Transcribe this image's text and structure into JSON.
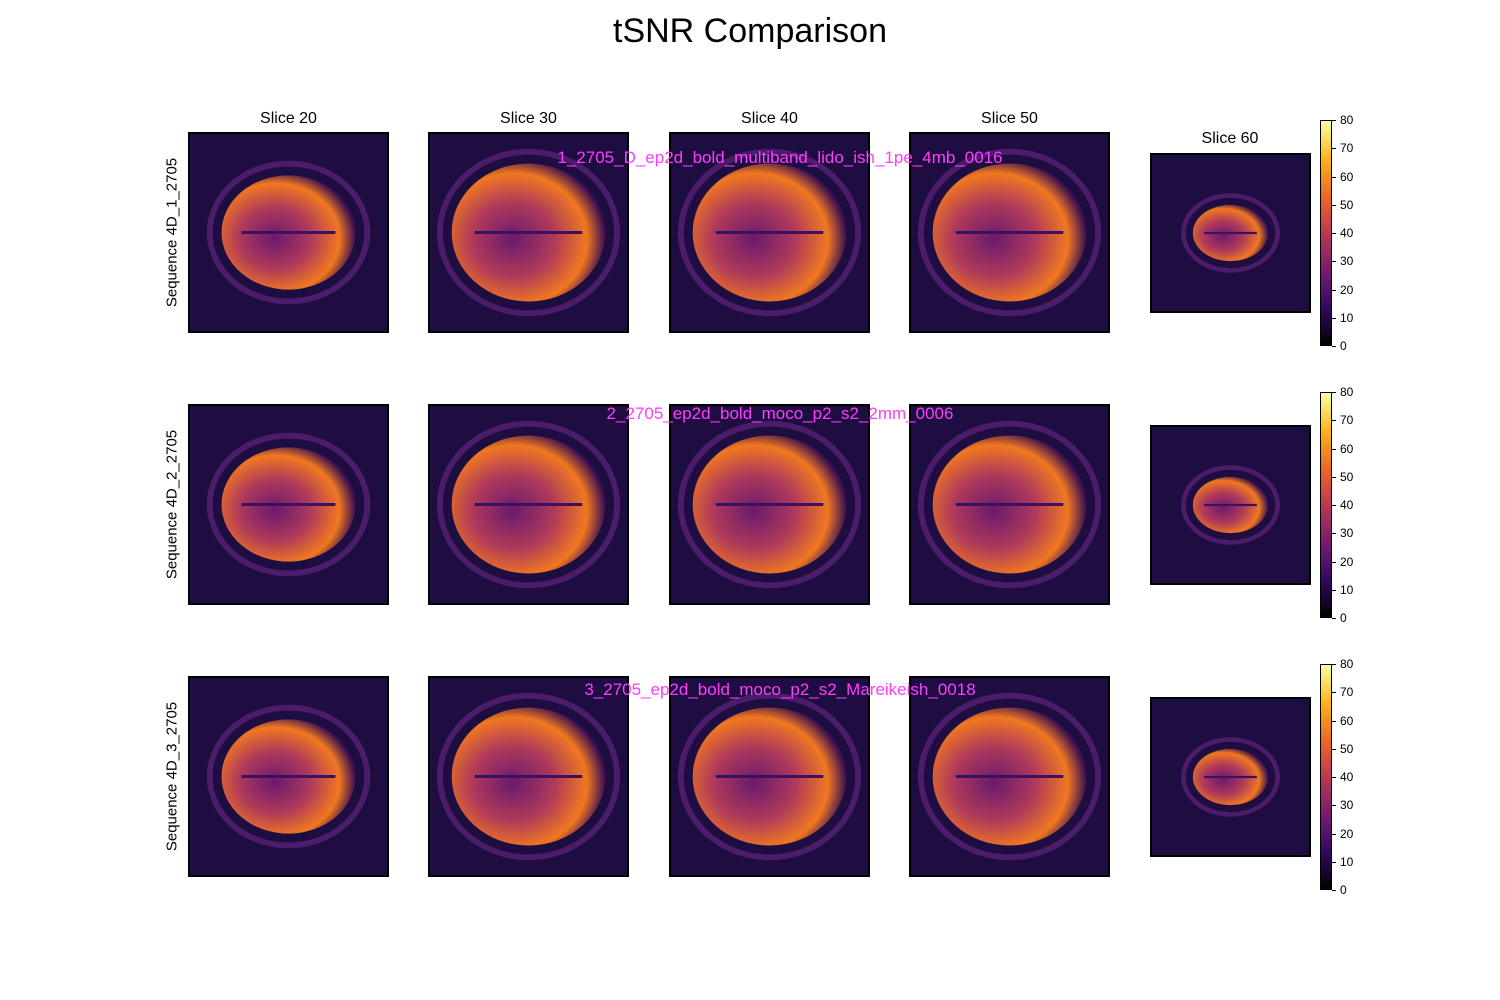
{
  "chart_data": {
    "type": "heatmap",
    "title": "tSNR Comparison",
    "columns": [
      "Slice 20",
      "Slice 30",
      "Slice 40",
      "Slice 50",
      "Slice 60"
    ],
    "rows": [
      {
        "label": "Sequence 4D_1_2705",
        "name": "1_2705_D_ep2d_bold_multiband_lido_ish_1pe_4mb_0016"
      },
      {
        "label": "Sequence 4D_2_2705",
        "name": "2_2705_ep2d_bold_moco_p2_s2_2mm_0006"
      },
      {
        "label": "Sequence 4D_3_2705",
        "name": "3_2705_ep2d_bold_moco_p2_s2_Mareikeish_0018"
      }
    ],
    "colorbar": {
      "colormap": "inferno",
      "range": [
        0,
        80
      ],
      "ticks": [
        "0",
        "10",
        "20",
        "30",
        "40",
        "50",
        "60",
        "70",
        "80"
      ]
    }
  }
}
